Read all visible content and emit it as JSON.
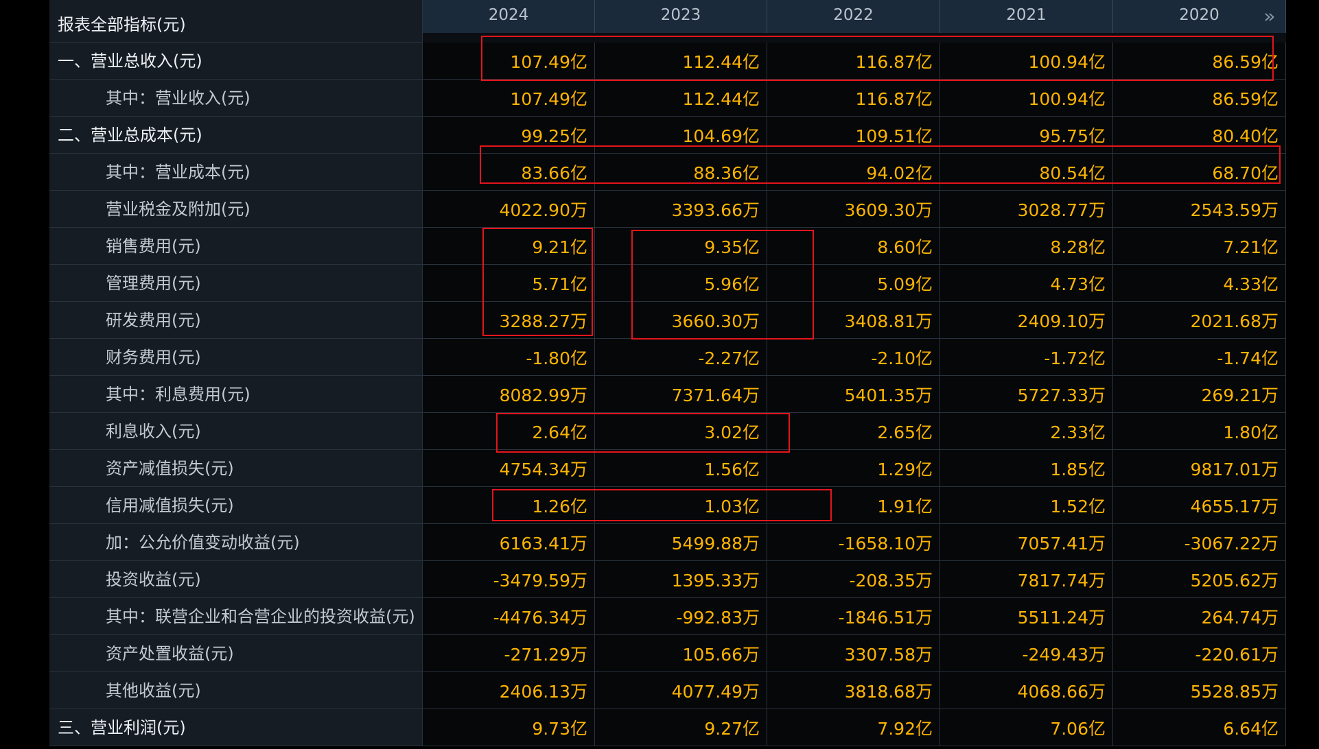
{
  "header": {
    "label": "报表全部指标(元)",
    "years": [
      "2024",
      "2023",
      "2022",
      "2021",
      "2020"
    ],
    "next_icon": "»"
  },
  "rows": [
    {
      "label": "一、营业总收入(元)",
      "top": true,
      "values": [
        "107.49亿",
        "112.44亿",
        "116.87亿",
        "100.94亿",
        "86.59亿"
      ]
    },
    {
      "label": "其中：营业收入(元)",
      "top": false,
      "values": [
        "107.49亿",
        "112.44亿",
        "116.87亿",
        "100.94亿",
        "86.59亿"
      ]
    },
    {
      "label": "二、营业总成本(元)",
      "top": true,
      "values": [
        "99.25亿",
        "104.69亿",
        "109.51亿",
        "95.75亿",
        "80.40亿"
      ]
    },
    {
      "label": "其中：营业成本(元)",
      "top": false,
      "values": [
        "83.66亿",
        "88.36亿",
        "94.02亿",
        "80.54亿",
        "68.70亿"
      ]
    },
    {
      "label": "营业税金及附加(元)",
      "top": false,
      "values": [
        "4022.90万",
        "3393.66万",
        "3609.30万",
        "3028.77万",
        "2543.59万"
      ]
    },
    {
      "label": "销售费用(元)",
      "top": false,
      "values": [
        "9.21亿",
        "9.35亿",
        "8.60亿",
        "8.28亿",
        "7.21亿"
      ]
    },
    {
      "label": "管理费用(元)",
      "top": false,
      "values": [
        "5.71亿",
        "5.96亿",
        "5.09亿",
        "4.73亿",
        "4.33亿"
      ]
    },
    {
      "label": "研发费用(元)",
      "top": false,
      "values": [
        "3288.27万",
        "3660.30万",
        "3408.81万",
        "2409.10万",
        "2021.68万"
      ]
    },
    {
      "label": "财务费用(元)",
      "top": false,
      "values": [
        "-1.80亿",
        "-2.27亿",
        "-2.10亿",
        "-1.72亿",
        "-1.74亿"
      ]
    },
    {
      "label": "其中：利息费用(元)",
      "top": false,
      "values": [
        "8082.99万",
        "7371.64万",
        "5401.35万",
        "5727.33万",
        "269.21万"
      ]
    },
    {
      "label": "利息收入(元)",
      "top": false,
      "values": [
        "2.64亿",
        "3.02亿",
        "2.65亿",
        "2.33亿",
        "1.80亿"
      ]
    },
    {
      "label": "资产减值损失(元)",
      "top": false,
      "values": [
        "4754.34万",
        "1.56亿",
        "1.29亿",
        "1.85亿",
        "9817.01万"
      ]
    },
    {
      "label": "信用减值损失(元)",
      "top": false,
      "values": [
        "1.26亿",
        "1.03亿",
        "1.91亿",
        "1.52亿",
        "4655.17万"
      ]
    },
    {
      "label": "加：公允价值变动收益(元)",
      "top": false,
      "values": [
        "6163.41万",
        "5499.88万",
        "-1658.10万",
        "7057.41万",
        "-3067.22万"
      ]
    },
    {
      "label": "投资收益(元)",
      "top": false,
      "values": [
        "-3479.59万",
        "1395.33万",
        "-208.35万",
        "7817.74万",
        "5205.62万"
      ]
    },
    {
      "label": "其中：联营企业和合营企业的投资收益(元)",
      "top": false,
      "values": [
        "-4476.34万",
        "-992.83万",
        "-1846.51万",
        "5511.24万",
        "264.74万"
      ]
    },
    {
      "label": "资产处置收益(元)",
      "top": false,
      "values": [
        "-271.29万",
        "105.66万",
        "3307.58万",
        "-249.43万",
        "-220.61万"
      ]
    },
    {
      "label": "其他收益(元)",
      "top": false,
      "values": [
        "2406.13万",
        "4077.49万",
        "3818.68万",
        "4068.66万",
        "5528.85万"
      ]
    },
    {
      "label": "三、营业利润(元)",
      "top": true,
      "values": [
        "9.73亿",
        "9.27亿",
        "7.92亿",
        "7.06亿",
        "6.64亿"
      ]
    }
  ],
  "colors": {
    "value_text": "#ffb400",
    "annotation_red": "#e4151b"
  }
}
